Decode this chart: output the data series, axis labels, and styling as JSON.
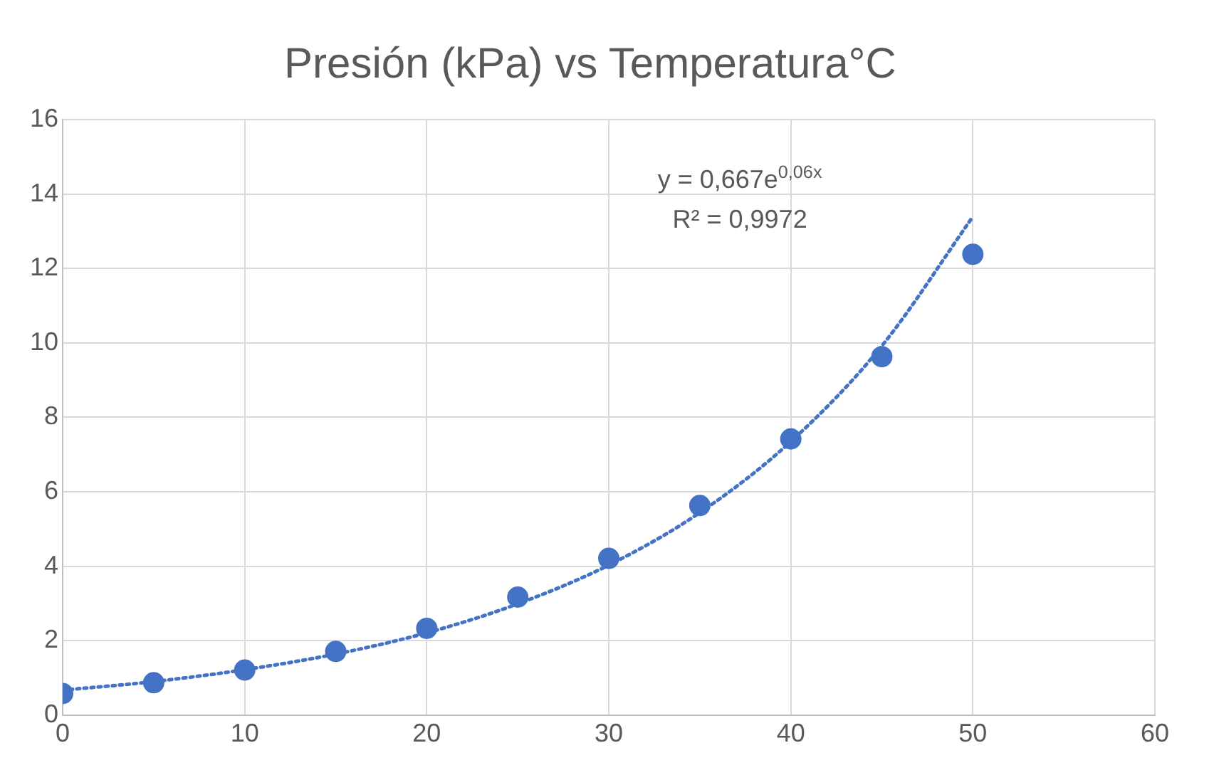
{
  "chart_data": {
    "type": "scatter",
    "title": "Presión (kPa) vs Temperatura°C",
    "xlim": [
      0,
      60
    ],
    "xticks": [
      0,
      10,
      20,
      30,
      40,
      50,
      60
    ],
    "ylim": [
      0,
      16
    ],
    "yticks": [
      0,
      2,
      4,
      6,
      8,
      10,
      12,
      14,
      16
    ],
    "grid": true,
    "legend": false,
    "series": [
      {
        "type": "scatter",
        "marker": "circle",
        "color": "#4472c4",
        "x": [
          0,
          5,
          10,
          15,
          20,
          25,
          30,
          35,
          40,
          45,
          50
        ],
        "values": [
          0.58,
          0.87,
          1.21,
          1.71,
          2.33,
          3.17,
          4.21,
          5.63,
          7.42,
          9.63,
          12.38
        ]
      },
      {
        "type": "line",
        "line_style": "dotted",
        "color": "#4472c4",
        "x": [
          0,
          5,
          10,
          15,
          20,
          25,
          30,
          35,
          40,
          45,
          50
        ],
        "values": [
          0.67,
          0.9,
          1.22,
          1.64,
          2.21,
          2.99,
          4.03,
          5.44,
          7.35,
          9.92,
          13.39
        ]
      }
    ],
    "annotations": [
      "y = 0,667e$^{0,06x}$",
      "R² = 0,9972"
    ]
  }
}
